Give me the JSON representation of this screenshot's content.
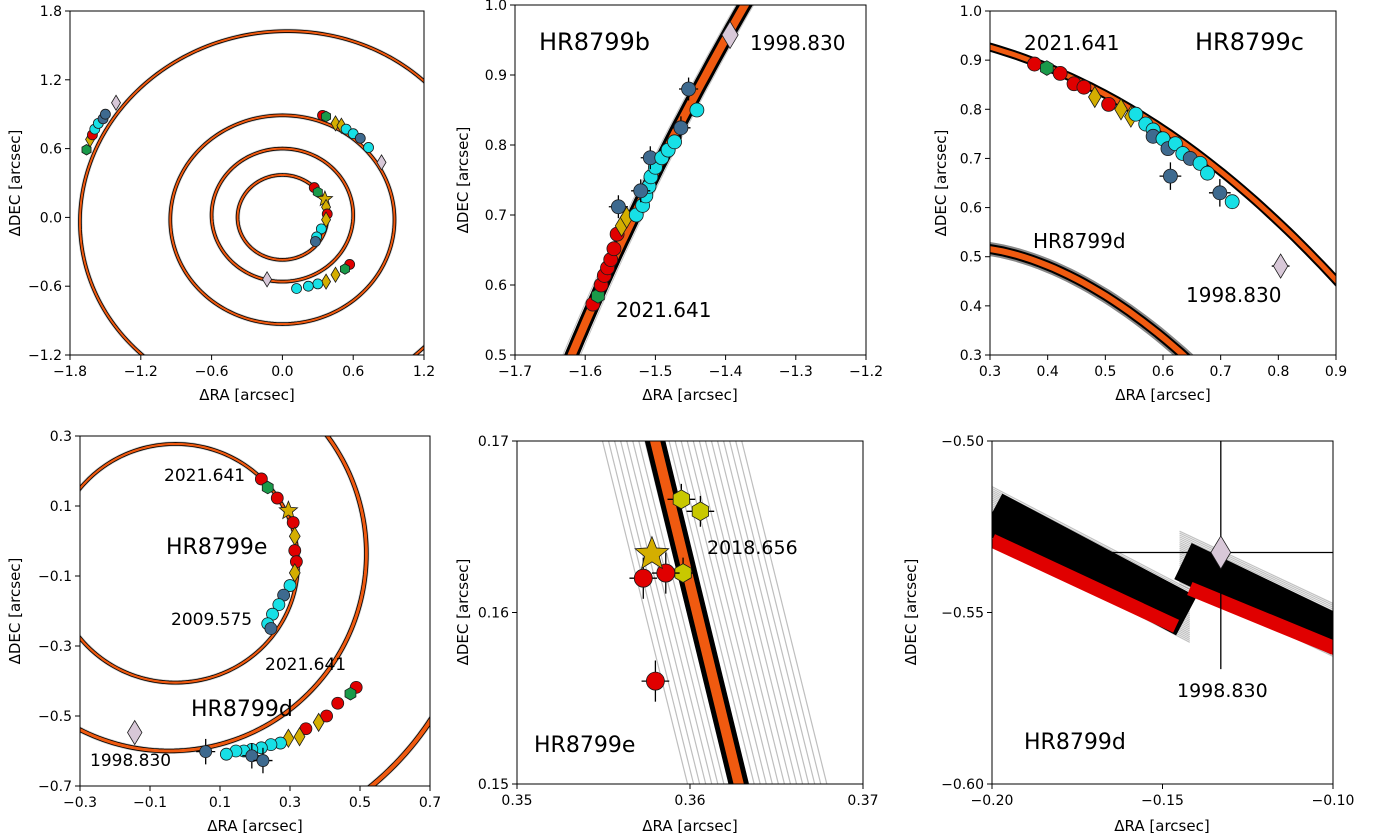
{
  "chart_data": [
    {
      "type": "scatter",
      "panel": "full-system",
      "xlabel": "ΔRA [arcsec]",
      "ylabel": "ΔDEC [arcsec]",
      "xlim": [
        -1.8,
        1.2
      ],
      "ylim": [
        -1.2,
        1.8
      ],
      "xticks": [
        "−1.8",
        "−1.2",
        "−0.6",
        "0.0",
        "0.6",
        "1.2"
      ],
      "yticks": [
        "−1.2",
        "−0.6",
        "0.0",
        "0.6",
        "1.2",
        "1.8"
      ],
      "annotations": [],
      "orbits": [
        {
          "name": "HR8799b",
          "cx": 0.0,
          "cy": 0.0,
          "a": 1.72,
          "b": 1.62,
          "rot": 12
        },
        {
          "name": "HR8799c",
          "cx": 0.0,
          "cy": -0.02,
          "a": 0.95,
          "b": 0.91,
          "rot": 0
        },
        {
          "name": "HR8799d",
          "cx": 0.0,
          "cy": 0.02,
          "a": 0.6,
          "b": 0.58,
          "rot": 0
        },
        {
          "name": "HR8799e",
          "cx": 0.0,
          "cy": 0.0,
          "a": 0.38,
          "b": 0.37,
          "rot": 0
        }
      ],
      "points": [
        {
          "x": -1.66,
          "y": 0.59,
          "c": "green",
          "m": "hex"
        },
        {
          "x": -1.63,
          "y": 0.68,
          "c": "gold",
          "m": "diamond"
        },
        {
          "x": -1.61,
          "y": 0.72,
          "c": "red",
          "m": "circle"
        },
        {
          "x": -1.59,
          "y": 0.77,
          "c": "cyan",
          "m": "circle"
        },
        {
          "x": -1.56,
          "y": 0.82,
          "c": "cyan",
          "m": "circle"
        },
        {
          "x": -1.52,
          "y": 0.86,
          "c": "steel",
          "m": "circle"
        },
        {
          "x": -1.5,
          "y": 0.9,
          "c": "steel",
          "m": "circle"
        },
        {
          "x": -1.41,
          "y": 1.0,
          "c": "lilac",
          "m": "diamond"
        },
        {
          "x": 0.34,
          "y": 0.89,
          "c": "red",
          "m": "circle"
        },
        {
          "x": 0.37,
          "y": 0.88,
          "c": "green",
          "m": "hex"
        },
        {
          "x": 0.45,
          "y": 0.82,
          "c": "gold",
          "m": "diamond"
        },
        {
          "x": 0.5,
          "y": 0.8,
          "c": "gold",
          "m": "diamond"
        },
        {
          "x": 0.54,
          "y": 0.77,
          "c": "cyan",
          "m": "circle"
        },
        {
          "x": 0.6,
          "y": 0.73,
          "c": "cyan",
          "m": "circle"
        },
        {
          "x": 0.66,
          "y": 0.69,
          "c": "steel",
          "m": "circle"
        },
        {
          "x": 0.73,
          "y": 0.61,
          "c": "cyan",
          "m": "circle"
        },
        {
          "x": 0.84,
          "y": 0.48,
          "c": "lilac",
          "m": "diamond"
        },
        {
          "x": 0.27,
          "y": 0.26,
          "c": "red",
          "m": "circle"
        },
        {
          "x": 0.3,
          "y": 0.22,
          "c": "green",
          "m": "hex"
        },
        {
          "x": 0.36,
          "y": 0.16,
          "c": "gold",
          "m": "star"
        },
        {
          "x": 0.37,
          "y": 0.09,
          "c": "gold",
          "m": "diamond"
        },
        {
          "x": 0.38,
          "y": 0.03,
          "c": "red",
          "m": "circle"
        },
        {
          "x": 0.37,
          "y": -0.02,
          "c": "gold",
          "m": "diamond"
        },
        {
          "x": 0.33,
          "y": -0.1,
          "c": "cyan",
          "m": "circle"
        },
        {
          "x": 0.29,
          "y": -0.17,
          "c": "cyan",
          "m": "circle"
        },
        {
          "x": 0.28,
          "y": -0.21,
          "c": "steel",
          "m": "circle"
        },
        {
          "x": 0.57,
          "y": -0.41,
          "c": "red",
          "m": "circle"
        },
        {
          "x": 0.53,
          "y": -0.45,
          "c": "green",
          "m": "hex"
        },
        {
          "x": 0.45,
          "y": -0.5,
          "c": "gold",
          "m": "diamond"
        },
        {
          "x": 0.37,
          "y": -0.56,
          "c": "gold",
          "m": "diamond"
        },
        {
          "x": 0.3,
          "y": -0.58,
          "c": "cyan",
          "m": "circle"
        },
        {
          "x": 0.22,
          "y": -0.6,
          "c": "cyan",
          "m": "circle"
        },
        {
          "x": 0.12,
          "y": -0.62,
          "c": "cyan",
          "m": "circle"
        },
        {
          "x": -0.13,
          "y": -0.54,
          "c": "lilac",
          "m": "diamond"
        }
      ]
    },
    {
      "type": "scatter",
      "panel": "HR8799b",
      "xlabel": "ΔRA [arcsec]",
      "ylabel": "ΔDEC [arcsec]",
      "xlim": [
        -1.75,
        -1.2
      ],
      "ylim": [
        0.5,
        1.05
      ],
      "xticks": [
        "−1.7",
        "−1.6",
        "−1.5",
        "−1.4",
        "−1.3",
        "−1.2"
      ],
      "yticks": [
        "0.5",
        "0.6",
        "0.7",
        "0.8",
        "0.9",
        "1.0"
      ],
      "annotations": [
        "HR8799b",
        "1998.830",
        "2021.641"
      ],
      "points": [
        {
          "x": -1.628,
          "y": 0.58,
          "c": "red",
          "m": "circle"
        },
        {
          "x": -1.62,
          "y": 0.593,
          "c": "green",
          "m": "hex"
        },
        {
          "x": -1.615,
          "y": 0.61,
          "c": "red",
          "m": "circle"
        },
        {
          "x": -1.61,
          "y": 0.625,
          "c": "red",
          "m": "circle"
        },
        {
          "x": -1.605,
          "y": 0.637,
          "c": "red",
          "m": "circle"
        },
        {
          "x": -1.6,
          "y": 0.65,
          "c": "red",
          "m": "circle"
        },
        {
          "x": -1.595,
          "y": 0.667,
          "c": "red",
          "m": "circle"
        },
        {
          "x": -1.59,
          "y": 0.69,
          "c": "red",
          "m": "circle"
        },
        {
          "x": -1.583,
          "y": 0.703,
          "c": "gold",
          "m": "diamond"
        },
        {
          "x": -1.575,
          "y": 0.716,
          "c": "gold",
          "m": "diamond"
        },
        {
          "x": -1.588,
          "y": 0.733,
          "c": "steel",
          "m": "circle"
        },
        {
          "x": -1.56,
          "y": 0.72,
          "c": "cyan",
          "m": "circle"
        },
        {
          "x": -1.55,
          "y": 0.735,
          "c": "cyan",
          "m": "circle"
        },
        {
          "x": -1.545,
          "y": 0.75,
          "c": "cyan",
          "m": "circle"
        },
        {
          "x": -1.54,
          "y": 0.765,
          "c": "cyan",
          "m": "circle"
        },
        {
          "x": -1.553,
          "y": 0.758,
          "c": "steel",
          "m": "circle"
        },
        {
          "x": -1.537,
          "y": 0.78,
          "c": "cyan",
          "m": "circle"
        },
        {
          "x": -1.53,
          "y": 0.795,
          "c": "cyan",
          "m": "circle"
        },
        {
          "x": -1.538,
          "y": 0.81,
          "c": "steel",
          "m": "circle"
        },
        {
          "x": -1.52,
          "y": 0.81,
          "c": "cyan",
          "m": "circle"
        },
        {
          "x": -1.51,
          "y": 0.822,
          "c": "cyan",
          "m": "circle"
        },
        {
          "x": -1.5,
          "y": 0.835,
          "c": "cyan",
          "m": "circle"
        },
        {
          "x": -1.49,
          "y": 0.857,
          "c": "steel",
          "m": "circle"
        },
        {
          "x": -1.465,
          "y": 0.885,
          "c": "cyan",
          "m": "circle"
        },
        {
          "x": -1.478,
          "y": 0.918,
          "c": "steel",
          "m": "circle"
        },
        {
          "x": -1.413,
          "y": 1.003,
          "c": "lilac",
          "m": "diamond"
        }
      ]
    },
    {
      "type": "scatter",
      "panel": "HR8799c",
      "xlabel": "ΔRA [arcsec]",
      "ylabel": "ΔDEC [arcsec]",
      "xlim": [
        0.25,
        0.95
      ],
      "ylim": [
        0.3,
        1.0
      ],
      "xticks": [
        "0.3",
        "0.4",
        "0.5",
        "0.6",
        "0.7",
        "0.8",
        "0.9"
      ],
      "yticks": [
        "0.3",
        "0.4",
        "0.5",
        "0.6",
        "0.7",
        "0.8",
        "0.9",
        "1.0"
      ],
      "annotations": [
        "2021.641",
        "HR8799c",
        "HR8799d",
        "1998.830"
      ],
      "points": [
        {
          "x": 0.34,
          "y": 0.892,
          "c": "red",
          "m": "circle"
        },
        {
          "x": 0.365,
          "y": 0.884,
          "c": "green",
          "m": "hex"
        },
        {
          "x": 0.392,
          "y": 0.873,
          "c": "red",
          "m": "circle"
        },
        {
          "x": 0.42,
          "y": 0.852,
          "c": "red",
          "m": "circle"
        },
        {
          "x": 0.44,
          "y": 0.845,
          "c": "red",
          "m": "circle"
        },
        {
          "x": 0.462,
          "y": 0.825,
          "c": "gold",
          "m": "diamond"
        },
        {
          "x": 0.49,
          "y": 0.81,
          "c": "red",
          "m": "circle"
        },
        {
          "x": 0.515,
          "y": 0.8,
          "c": "gold",
          "m": "diamond"
        },
        {
          "x": 0.535,
          "y": 0.785,
          "c": "gold",
          "m": "diamond"
        },
        {
          "x": 0.545,
          "y": 0.79,
          "c": "cyan",
          "m": "circle"
        },
        {
          "x": 0.565,
          "y": 0.77,
          "c": "cyan",
          "m": "circle"
        },
        {
          "x": 0.58,
          "y": 0.758,
          "c": "cyan",
          "m": "circle"
        },
        {
          "x": 0.58,
          "y": 0.745,
          "c": "steel",
          "m": "circle"
        },
        {
          "x": 0.6,
          "y": 0.74,
          "c": "cyan",
          "m": "circle"
        },
        {
          "x": 0.61,
          "y": 0.72,
          "c": "steel",
          "m": "circle"
        },
        {
          "x": 0.625,
          "y": 0.73,
          "c": "cyan",
          "m": "circle"
        },
        {
          "x": 0.64,
          "y": 0.71,
          "c": "cyan",
          "m": "circle"
        },
        {
          "x": 0.655,
          "y": 0.7,
          "c": "steel",
          "m": "circle"
        },
        {
          "x": 0.675,
          "y": 0.69,
          "c": "cyan",
          "m": "circle"
        },
        {
          "x": 0.69,
          "y": 0.67,
          "c": "cyan",
          "m": "circle"
        },
        {
          "x": 0.615,
          "y": 0.664,
          "c": "steel",
          "m": "circle"
        },
        {
          "x": 0.715,
          "y": 0.63,
          "c": "steel",
          "m": "circle"
        },
        {
          "x": 0.74,
          "y": 0.612,
          "c": "cyan",
          "m": "circle"
        },
        {
          "x": 0.838,
          "y": 0.481,
          "c": "lilac",
          "m": "diamond"
        }
      ]
    },
    {
      "type": "scatter",
      "panel": "HR8799d-e",
      "xlabel": "ΔRA [arcsec]",
      "ylabel": "ΔDEC [arcsec]",
      "xlim": [
        -0.3,
        0.8
      ],
      "ylim": [
        -0.7,
        0.4
      ],
      "xticks": [
        "−0.3",
        "−0.1",
        "0.1",
        "0.3",
        "0.5",
        "0.7"
      ],
      "yticks": [
        "−0.7",
        "−0.5",
        "−0.3",
        "−0.1",
        "0.1",
        "0.3"
      ],
      "annotations": [
        "2021.641",
        "HR8799e",
        "2009.575",
        "2021.641",
        "HR8799d",
        "1998.830"
      ],
      "points": [
        {
          "x": 0.27,
          "y": 0.265,
          "c": "red",
          "m": "circle"
        },
        {
          "x": 0.29,
          "y": 0.238,
          "c": "green",
          "m": "hex"
        },
        {
          "x": 0.32,
          "y": 0.205,
          "c": "red",
          "m": "circle"
        },
        {
          "x": 0.355,
          "y": 0.165,
          "c": "gold",
          "m": "star"
        },
        {
          "x": 0.37,
          "y": 0.128,
          "c": "red",
          "m": "circle"
        },
        {
          "x": 0.375,
          "y": 0.085,
          "c": "gold",
          "m": "diamond"
        },
        {
          "x": 0.375,
          "y": 0.04,
          "c": "red",
          "m": "circle"
        },
        {
          "x": 0.38,
          "y": 0.005,
          "c": "red",
          "m": "circle"
        },
        {
          "x": 0.375,
          "y": -0.03,
          "c": "gold",
          "m": "diamond"
        },
        {
          "x": 0.36,
          "y": -0.07,
          "c": "cyan",
          "m": "circle"
        },
        {
          "x": 0.34,
          "y": -0.1,
          "c": "steel",
          "m": "circle"
        },
        {
          "x": 0.325,
          "y": -0.13,
          "c": "cyan",
          "m": "circle"
        },
        {
          "x": 0.305,
          "y": -0.16,
          "c": "cyan",
          "m": "circle"
        },
        {
          "x": 0.29,
          "y": -0.19,
          "c": "cyan",
          "m": "circle"
        },
        {
          "x": 0.3,
          "y": -0.205,
          "c": "steel",
          "m": "circle"
        },
        {
          "x": 0.568,
          "y": -0.39,
          "c": "red",
          "m": "circle"
        },
        {
          "x": 0.55,
          "y": -0.41,
          "c": "green",
          "m": "hex"
        },
        {
          "x": 0.51,
          "y": -0.44,
          "c": "red",
          "m": "circle"
        },
        {
          "x": 0.475,
          "y": -0.48,
          "c": "red",
          "m": "circle"
        },
        {
          "x": 0.45,
          "y": -0.5,
          "c": "gold",
          "m": "diamond"
        },
        {
          "x": 0.41,
          "y": -0.52,
          "c": "red",
          "m": "circle"
        },
        {
          "x": 0.39,
          "y": -0.545,
          "c": "gold",
          "m": "diamond"
        },
        {
          "x": 0.355,
          "y": -0.55,
          "c": "gold",
          "m": "diamond"
        },
        {
          "x": 0.33,
          "y": -0.565,
          "c": "cyan",
          "m": "circle"
        },
        {
          "x": 0.3,
          "y": -0.57,
          "c": "cyan",
          "m": "circle"
        },
        {
          "x": 0.27,
          "y": -0.58,
          "c": "cyan",
          "m": "circle"
        },
        {
          "x": 0.24,
          "y": -0.585,
          "c": "cyan",
          "m": "circle"
        },
        {
          "x": 0.215,
          "y": -0.59,
          "c": "cyan",
          "m": "circle"
        },
        {
          "x": 0.19,
          "y": -0.59,
          "c": "cyan",
          "m": "circle"
        },
        {
          "x": 0.16,
          "y": -0.6,
          "c": "cyan",
          "m": "circle"
        },
        {
          "x": 0.24,
          "y": -0.605,
          "c": "steel",
          "m": "circle"
        },
        {
          "x": 0.275,
          "y": -0.62,
          "c": "steel",
          "m": "circle"
        },
        {
          "x": 0.095,
          "y": -0.592,
          "c": "steel",
          "m": "circle"
        },
        {
          "x": -0.128,
          "y": -0.532,
          "c": "lilac",
          "m": "diamond"
        }
      ]
    },
    {
      "type": "scatter",
      "panel": "HR8799e-zoom",
      "xlabel": "ΔRA [arcsec]",
      "ylabel": "ΔDEC [arcsec]",
      "xlim": [
        0.35,
        0.37
      ],
      "ylim": [
        0.15,
        0.17
      ],
      "xticks": [
        "0.35",
        "0.36",
        "0.37"
      ],
      "yticks": [
        "0.15",
        "0.16",
        "0.17"
      ],
      "annotations": [
        "2018.656",
        "HR8799e"
      ],
      "points": [
        {
          "x": 0.3595,
          "y": 0.1666,
          "c": "yellow",
          "m": "hex"
        },
        {
          "x": 0.3606,
          "y": 0.1659,
          "c": "yellow",
          "m": "hex"
        },
        {
          "x": 0.3596,
          "y": 0.1623,
          "c": "yellow",
          "m": "hex"
        },
        {
          "x": 0.3586,
          "y": 0.1623,
          "c": "red",
          "m": "circle"
        },
        {
          "x": 0.3573,
          "y": 0.162,
          "c": "red",
          "m": "circle"
        },
        {
          "x": 0.358,
          "y": 0.156,
          "c": "red",
          "m": "circle"
        },
        {
          "x": 0.3578,
          "y": 0.1634,
          "c": "gold",
          "m": "star"
        }
      ]
    },
    {
      "type": "scatter",
      "panel": "HR8799d-zoom",
      "xlabel": "ΔRA [arcsec]",
      "ylabel": "ΔDEC [arcsec]",
      "xlim": [
        -0.2,
        -0.1
      ],
      "ylim": [
        -0.6,
        -0.5
      ],
      "xticks": [
        "−0.20",
        "−0.15",
        "−0.10"
      ],
      "yticks": [
        "−0.60",
        "−0.55",
        "−0.50"
      ],
      "annotations": [
        "1998.830",
        "HR8799d"
      ],
      "points": [
        {
          "x": -0.1329,
          "y": -0.5325,
          "c": "lilac",
          "m": "diamond"
        }
      ]
    }
  ],
  "colors": {
    "red": "#e00000",
    "green": "#1a9a4a",
    "gold": "#d4ae00",
    "yellow": "#c8c800",
    "steel": "#3e6a8f",
    "cyan": "#17e0e6",
    "lilac": "#d8c8d8",
    "orbit": "#f05a10",
    "orbit_edge": "#000000",
    "grey": "#9a9a9a"
  }
}
